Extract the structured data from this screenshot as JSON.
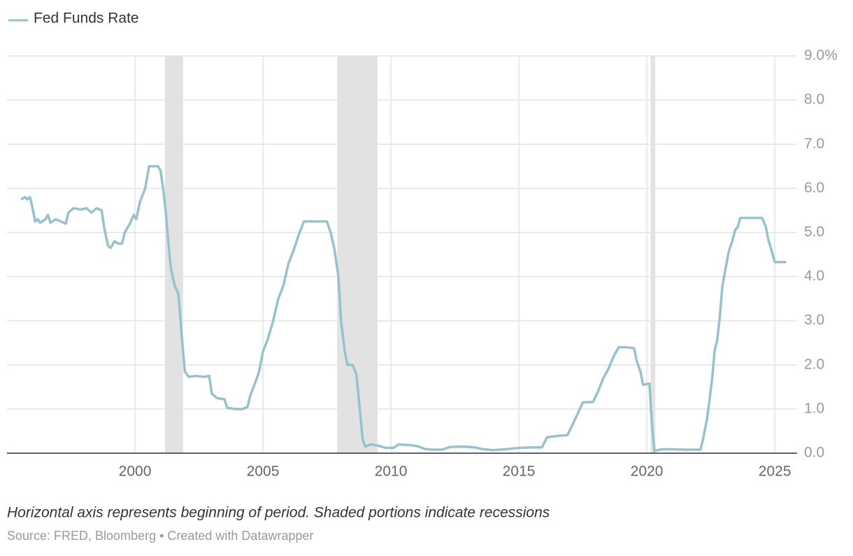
{
  "chart_data": {
    "type": "line",
    "series": [
      {
        "name": "Fed Funds Rate",
        "color": "#97c1cb",
        "x": [
          1995.55,
          1995.7,
          1995.8,
          1995.9,
          1996.0,
          1996.1,
          1996.2,
          1996.3,
          1996.5,
          1996.6,
          1996.7,
          1996.9,
          1997.1,
          1997.3,
          1997.4,
          1997.6,
          1997.9,
          1998.1,
          1998.3,
          1998.5,
          1998.7,
          1998.8,
          1998.95,
          1999.05,
          1999.2,
          1999.35,
          1999.5,
          1999.6,
          1999.8,
          1999.95,
          2000.05,
          2000.2,
          2000.4,
          2000.55,
          2000.7,
          2000.9,
          2001.0,
          2001.1,
          2001.2,
          2001.3,
          2001.4,
          2001.55,
          2001.7,
          2001.85,
          2001.95,
          2002.1,
          2002.4,
          2002.7,
          2002.9,
          2003.0,
          2003.2,
          2003.5,
          2003.6,
          2003.9,
          2004.2,
          2004.4,
          2004.5,
          2004.7,
          2004.85,
          2005.0,
          2005.2,
          2005.4,
          2005.6,
          2005.8,
          2006.0,
          2006.2,
          2006.4,
          2006.6,
          2007.0,
          2007.3,
          2007.5,
          2007.65,
          2007.8,
          2007.95,
          2008.05,
          2008.2,
          2008.3,
          2008.5,
          2008.65,
          2008.8,
          2008.9,
          2009.0,
          2009.2,
          2009.5,
          2009.8,
          2010.1,
          2010.3,
          2010.8,
          2011.1,
          2011.3,
          2011.6,
          2012.0,
          2012.3,
          2012.8,
          2013.3,
          2013.6,
          2014.0,
          2014.5,
          2015.0,
          2015.5,
          2015.9,
          2016.1,
          2016.5,
          2016.9,
          2017.1,
          2017.3,
          2017.5,
          2017.9,
          2018.1,
          2018.3,
          2018.5,
          2018.7,
          2018.9,
          2019.2,
          2019.5,
          2019.6,
          2019.75,
          2019.85,
          2020.1,
          2020.2,
          2020.3,
          2020.6,
          2021.0,
          2021.5,
          2021.8,
          2022.1,
          2022.2,
          2022.35,
          2022.45,
          2022.55,
          2022.65,
          2022.75,
          2022.85,
          2022.95,
          2023.05,
          2023.2,
          2023.35,
          2023.45,
          2023.55,
          2023.65,
          2024.0,
          2024.5,
          2024.65,
          2024.75,
          2024.85,
          2025.0,
          2025.45
        ],
        "values": [
          5.75,
          5.8,
          5.75,
          5.8,
          5.55,
          5.25,
          5.3,
          5.22,
          5.3,
          5.4,
          5.22,
          5.3,
          5.25,
          5.2,
          5.45,
          5.55,
          5.52,
          5.55,
          5.45,
          5.55,
          5.5,
          5.1,
          4.7,
          4.65,
          4.8,
          4.75,
          4.75,
          5.0,
          5.2,
          5.4,
          5.3,
          5.7,
          6.0,
          6.5,
          6.5,
          6.5,
          6.4,
          6.0,
          5.5,
          4.8,
          4.2,
          3.8,
          3.6,
          2.5,
          1.85,
          1.73,
          1.75,
          1.73,
          1.75,
          1.35,
          1.25,
          1.22,
          1.03,
          1.0,
          1.0,
          1.05,
          1.3,
          1.6,
          1.85,
          2.3,
          2.6,
          3.0,
          3.5,
          3.8,
          4.3,
          4.6,
          4.95,
          5.25,
          5.25,
          5.25,
          5.25,
          5.0,
          4.6,
          4.0,
          3.0,
          2.3,
          2.0,
          2.0,
          1.8,
          0.9,
          0.3,
          0.15,
          0.2,
          0.17,
          0.12,
          0.12,
          0.2,
          0.18,
          0.15,
          0.1,
          0.08,
          0.08,
          0.14,
          0.15,
          0.13,
          0.09,
          0.07,
          0.09,
          0.12,
          0.13,
          0.13,
          0.36,
          0.39,
          0.41,
          0.65,
          0.9,
          1.15,
          1.16,
          1.41,
          1.7,
          1.91,
          2.19,
          2.4,
          2.4,
          2.38,
          2.1,
          1.85,
          1.55,
          1.58,
          0.65,
          0.05,
          0.09,
          0.09,
          0.08,
          0.08,
          0.08,
          0.33,
          0.77,
          1.21,
          1.68,
          2.33,
          2.56,
          3.08,
          3.78,
          4.1,
          4.57,
          4.83,
          5.06,
          5.12,
          5.33,
          5.33,
          5.33,
          5.13,
          4.83,
          4.64,
          4.33,
          4.33
        ]
      }
    ],
    "recessions": [
      [
        2001.17,
        2001.88
      ],
      [
        2007.9,
        2009.48
      ],
      [
        2020.15,
        2020.33
      ]
    ],
    "recession_color": "#e2e2e2",
    "xlim": [
      1995.0,
      2025.87
    ],
    "xticks": [
      2000,
      2005,
      2010,
      2015,
      2020,
      2025
    ],
    "ylim": [
      0,
      9
    ],
    "yticks": [
      {
        "value": 0,
        "label": "0.0"
      },
      {
        "value": 1,
        "label": "1.0"
      },
      {
        "value": 2,
        "label": "2.0"
      },
      {
        "value": 3,
        "label": "3.0"
      },
      {
        "value": 4,
        "label": "4.0"
      },
      {
        "value": 5,
        "label": "5.0"
      },
      {
        "value": 6,
        "label": "6.0"
      },
      {
        "value": 7,
        "label": "7.0"
      },
      {
        "value": 8,
        "label": "8.0"
      },
      {
        "value": 9,
        "label": "9.0%"
      }
    ],
    "grid": true,
    "note": "Horizontal axis represents beginning of period. Shaded portions indicate recessions",
    "source": "Source: FRED, Bloomberg • Created with Datawrapper"
  }
}
